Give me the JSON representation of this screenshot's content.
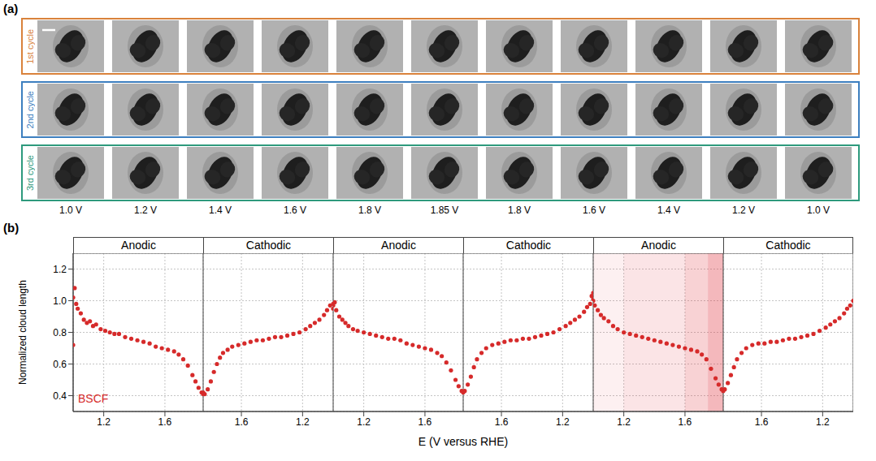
{
  "panel_a": {
    "label": "(a)",
    "rows": [
      {
        "label": "1st cycle",
        "color": "#d9823b"
      },
      {
        "label": "2nd cycle",
        "color": "#3d7fbf"
      },
      {
        "label": "3rd cycle",
        "color": "#2e9a7d"
      }
    ],
    "columns": [
      "1.0 V",
      "1.2 V",
      "1.4 V",
      "1.6 V",
      "1.8 V",
      "1.85 V",
      "1.8 V",
      "1.6 V",
      "1.4 V",
      "1.2 V",
      "1.0 V"
    ]
  },
  "panel_b": {
    "label": "(b)",
    "xlabel": "E (V versus RHE)"
  },
  "chart_data": [
    {
      "type": "scatter",
      "title": "Anodic",
      "ylabel": "Normalized cloud length",
      "annotation": "BSCF",
      "color": "#d62a2a",
      "marker": "circle",
      "grid": true,
      "xlim": [
        1.0,
        1.85
      ],
      "xticks": [
        1.2,
        1.6
      ],
      "ylim": [
        0.3,
        1.3
      ],
      "yticks": [
        0.4,
        0.6,
        0.8,
        {
          "value": 1,
          "label": "1.0"
        },
        1.2
      ],
      "x": [
        1.0,
        1.0,
        1.01,
        1.02,
        1.03,
        1.05,
        1.07,
        1.09,
        1.11,
        1.13,
        1.15,
        1.18,
        1.21,
        1.24,
        1.27,
        1.3,
        1.34,
        1.38,
        1.42,
        1.46,
        1.5,
        1.54,
        1.58,
        1.62,
        1.66,
        1.69,
        1.72,
        1.75,
        1.78,
        1.8,
        1.82,
        1.84,
        1.85
      ],
      "values": [
        0.72,
        1.02,
        1.08,
        0.98,
        0.95,
        0.92,
        0.88,
        0.86,
        0.87,
        0.84,
        0.85,
        0.82,
        0.81,
        0.8,
        0.79,
        0.79,
        0.77,
        0.76,
        0.75,
        0.74,
        0.73,
        0.71,
        0.7,
        0.69,
        0.68,
        0.66,
        0.63,
        0.59,
        0.53,
        0.49,
        0.45,
        0.42,
        0.41
      ]
    },
    {
      "type": "scatter",
      "title": "Cathodic",
      "tick_labels": "x",
      "color": "#d62a2a",
      "marker": "circle",
      "grid": true,
      "xlim": [
        1.85,
        1.0
      ],
      "xticks": [
        1.6,
        1.2
      ],
      "ylim": [
        0.3,
        1.3
      ],
      "yticks": [
        0.4,
        0.6,
        0.8,
        {
          "value": 1,
          "label": "1.0"
        },
        1.2
      ],
      "x": [
        1.85,
        1.84,
        1.82,
        1.8,
        1.78,
        1.76,
        1.74,
        1.72,
        1.69,
        1.66,
        1.62,
        1.58,
        1.54,
        1.5,
        1.46,
        1.42,
        1.38,
        1.34,
        1.3,
        1.26,
        1.22,
        1.18,
        1.15,
        1.12,
        1.09,
        1.06,
        1.04,
        1.02,
        1.0,
        1.0
      ],
      "values": [
        0.42,
        0.41,
        0.44,
        0.49,
        0.55,
        0.6,
        0.64,
        0.67,
        0.69,
        0.71,
        0.72,
        0.73,
        0.74,
        0.75,
        0.75,
        0.76,
        0.77,
        0.77,
        0.78,
        0.79,
        0.8,
        0.82,
        0.84,
        0.86,
        0.88,
        0.91,
        0.94,
        0.97,
        0.98,
        0.95
      ]
    },
    {
      "type": "scatter",
      "title": "Anodic",
      "tick_labels": "x",
      "color": "#d62a2a",
      "marker": "circle",
      "grid": true,
      "xlim": [
        1.0,
        1.85
      ],
      "xticks": [
        1.2,
        1.6
      ],
      "ylim": [
        0.3,
        1.3
      ],
      "yticks": [
        0.4,
        0.6,
        0.8,
        {
          "value": 1,
          "label": "1.0"
        },
        1.2
      ],
      "x": [
        1.0,
        1.01,
        1.02,
        1.04,
        1.06,
        1.08,
        1.1,
        1.13,
        1.16,
        1.2,
        1.24,
        1.28,
        1.32,
        1.36,
        1.4,
        1.44,
        1.48,
        1.52,
        1.56,
        1.6,
        1.64,
        1.68,
        1.71,
        1.74,
        1.77,
        1.8,
        1.82,
        1.84,
        1.85
      ],
      "values": [
        0.97,
        0.99,
        0.94,
        0.9,
        0.88,
        0.86,
        0.84,
        0.82,
        0.81,
        0.8,
        0.79,
        0.78,
        0.77,
        0.76,
        0.76,
        0.75,
        0.73,
        0.72,
        0.71,
        0.7,
        0.69,
        0.67,
        0.65,
        0.61,
        0.56,
        0.5,
        0.46,
        0.43,
        0.42
      ]
    },
    {
      "type": "scatter",
      "title": "Cathodic",
      "tick_labels": "x",
      "color": "#d62a2a",
      "marker": "circle",
      "grid": true,
      "xlim": [
        1.85,
        1.0
      ],
      "xticks": [
        1.6,
        1.2
      ],
      "ylim": [
        0.3,
        1.3
      ],
      "yticks": [
        0.4,
        0.6,
        0.8,
        {
          "value": 1,
          "label": "1.0"
        },
        1.2
      ],
      "x": [
        1.85,
        1.84,
        1.82,
        1.8,
        1.78,
        1.76,
        1.73,
        1.7,
        1.66,
        1.62,
        1.58,
        1.54,
        1.5,
        1.46,
        1.42,
        1.38,
        1.34,
        1.3,
        1.26,
        1.22,
        1.18,
        1.15,
        1.12,
        1.09,
        1.06,
        1.04,
        1.02,
        1.01,
        1.0,
        1.0
      ],
      "values": [
        0.42,
        0.43,
        0.47,
        0.52,
        0.58,
        0.63,
        0.67,
        0.7,
        0.72,
        0.73,
        0.74,
        0.75,
        0.75,
        0.76,
        0.76,
        0.77,
        0.78,
        0.79,
        0.8,
        0.82,
        0.84,
        0.86,
        0.88,
        0.9,
        0.93,
        0.96,
        0.98,
        1.03,
        1.05,
        1.01
      ]
    },
    {
      "type": "scatter",
      "title": "Anodic",
      "tick_labels": "x",
      "color": "#d62a2a",
      "marker": "circle",
      "grid": true,
      "xlim": [
        1.0,
        1.85
      ],
      "xticks": [
        1.2,
        1.6
      ],
      "ylim": [
        0.3,
        1.3
      ],
      "yticks": [
        0.4,
        0.6,
        0.8,
        {
          "value": 1,
          "label": "1.0"
        },
        1.2
      ],
      "shaded_ranges": [
        [
          1.0,
          1.2
        ],
        [
          1.2,
          1.6
        ],
        [
          1.6,
          1.75
        ],
        [
          1.75,
          1.85
        ]
      ],
      "x": [
        1.0,
        1.01,
        1.03,
        1.05,
        1.07,
        1.1,
        1.13,
        1.16,
        1.2,
        1.24,
        1.28,
        1.32,
        1.36,
        1.4,
        1.44,
        1.48,
        1.52,
        1.56,
        1.6,
        1.64,
        1.68,
        1.71,
        1.74,
        1.77,
        1.8,
        1.82,
        1.84,
        1.85
      ],
      "values": [
        1.0,
        0.97,
        0.94,
        0.91,
        0.89,
        0.87,
        0.84,
        0.82,
        0.8,
        0.79,
        0.78,
        0.77,
        0.76,
        0.75,
        0.74,
        0.73,
        0.72,
        0.71,
        0.7,
        0.69,
        0.68,
        0.66,
        0.63,
        0.57,
        0.51,
        0.47,
        0.44,
        0.43
      ]
    },
    {
      "type": "scatter",
      "title": "Cathodic",
      "tick_labels": "x",
      "color": "#d62a2a",
      "marker": "circle",
      "grid": true,
      "xlim": [
        1.85,
        1.0
      ],
      "xticks": [
        1.6,
        1.2
      ],
      "ylim": [
        0.3,
        1.3
      ],
      "yticks": [
        0.4,
        0.6,
        0.8,
        {
          "value": 1,
          "label": "1.0"
        },
        1.2
      ],
      "x": [
        1.85,
        1.84,
        1.82,
        1.8,
        1.78,
        1.76,
        1.73,
        1.7,
        1.66,
        1.62,
        1.58,
        1.54,
        1.5,
        1.46,
        1.42,
        1.38,
        1.34,
        1.3,
        1.26,
        1.22,
        1.18,
        1.15,
        1.12,
        1.09,
        1.06,
        1.04,
        1.02,
        1.0
      ],
      "values": [
        0.43,
        0.44,
        0.48,
        0.53,
        0.58,
        0.63,
        0.67,
        0.7,
        0.72,
        0.73,
        0.73,
        0.74,
        0.74,
        0.75,
        0.76,
        0.76,
        0.77,
        0.78,
        0.79,
        0.81,
        0.83,
        0.85,
        0.87,
        0.89,
        0.92,
        0.95,
        0.97,
        1.0
      ]
    }
  ]
}
